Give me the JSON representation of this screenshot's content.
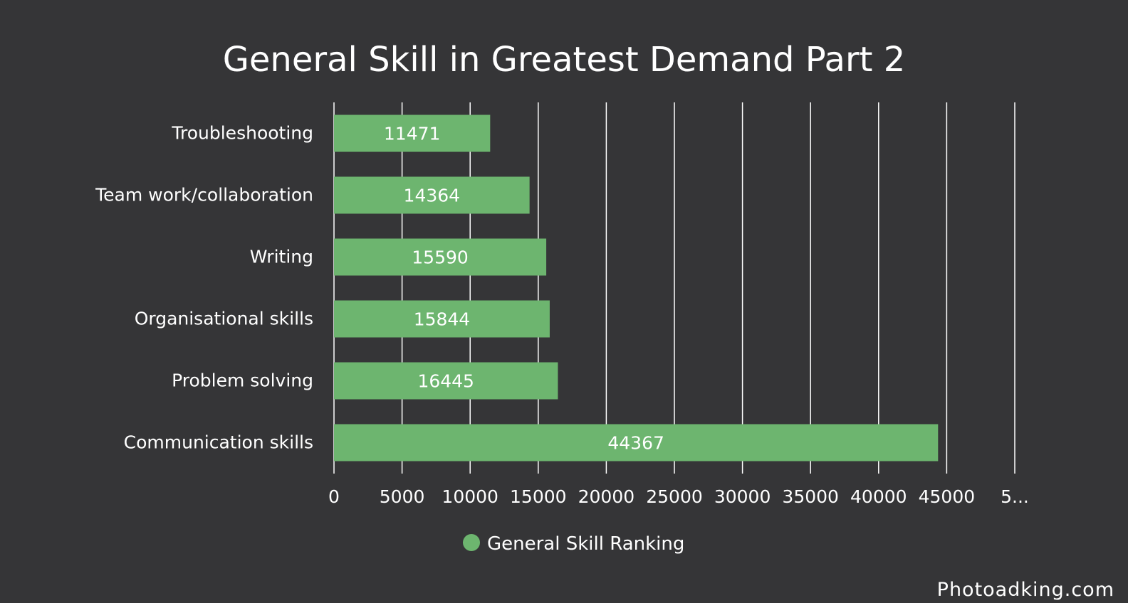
{
  "chart_data": {
    "type": "bar",
    "orientation": "horizontal",
    "title": "General Skill in Greatest Demand Part 2",
    "categories": [
      "Troubleshooting",
      "Team work/collaboration",
      "Writing",
      "Organisational skills",
      "Problem solving",
      "Communication skills"
    ],
    "series": [
      {
        "name": "General Skill Ranking",
        "color": "#6db56f",
        "values": [
          11471,
          14364,
          15590,
          15844,
          16445,
          44367
        ]
      }
    ],
    "value_labels": [
      "11471",
      "14364",
      "15590",
      "15844",
      "16445",
      "44367"
    ],
    "xlim": [
      0,
      50000
    ],
    "x_ticks": [
      "0",
      "5000",
      "10000",
      "15000",
      "20000",
      "25000",
      "30000",
      "35000",
      "40000",
      "45000",
      "5..."
    ],
    "grid": true,
    "legend_position": "bottom-center"
  },
  "watermark": "Photoadking.com",
  "colors": {
    "background": "#353537",
    "bar": "#6db56f",
    "text": "#ffffff"
  }
}
